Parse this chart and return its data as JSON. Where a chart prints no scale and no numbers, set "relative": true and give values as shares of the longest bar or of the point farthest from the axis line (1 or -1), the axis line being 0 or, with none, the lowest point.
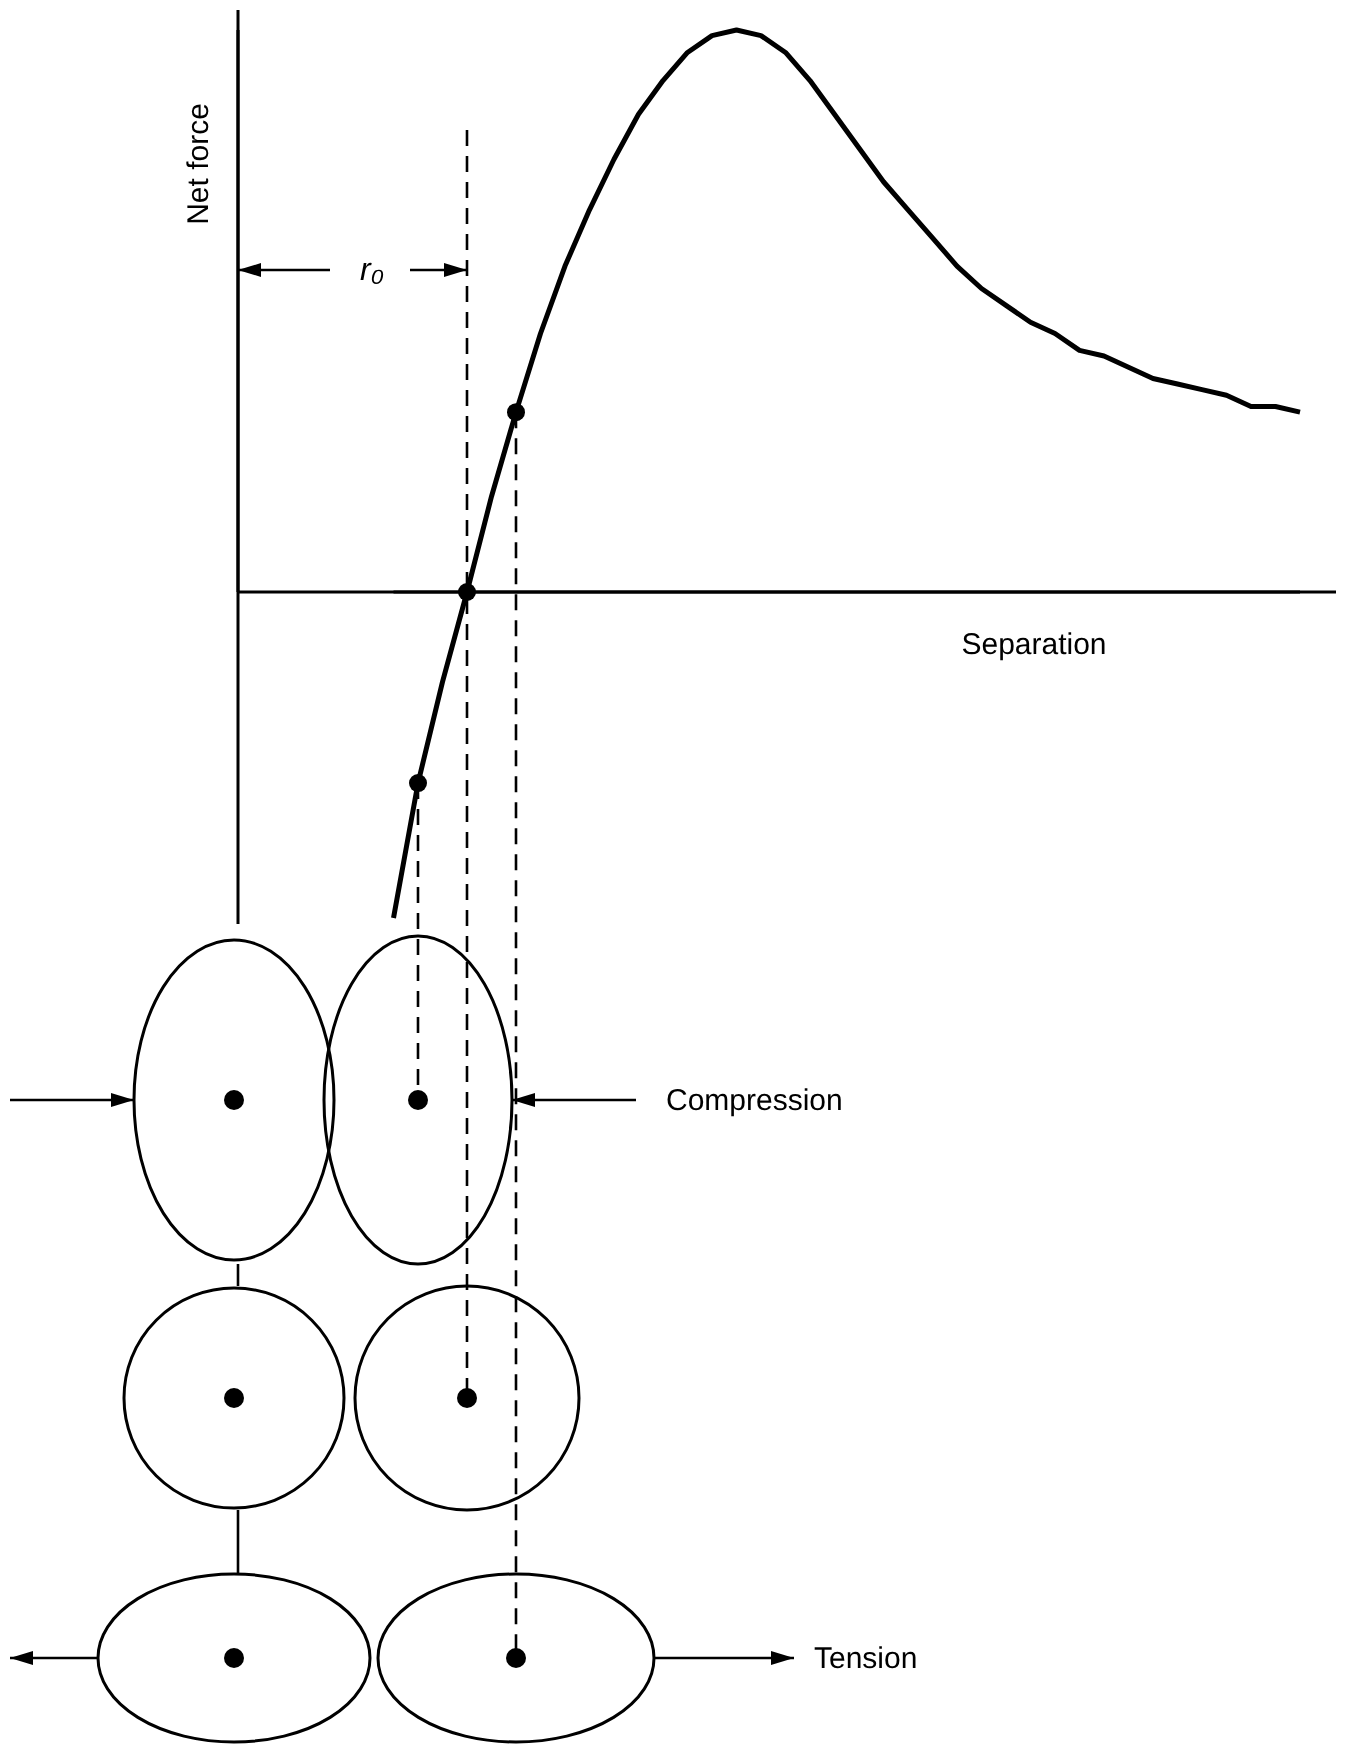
{
  "chart_data": {
    "type": "line",
    "relative": true,
    "xlabel": "Separation",
    "categories": [
      null,
      null,
      null,
      null,
      null,
      null,
      null,
      null,
      null,
      null,
      null,
      null,
      null,
      null,
      null,
      null,
      null,
      null,
      null,
      null,
      null,
      null,
      null,
      null,
      null,
      null,
      null,
      null,
      null,
      null,
      null,
      null,
      null,
      null,
      null,
      null,
      null,
      null
    ],
    "series": [
      {
        "color": "#000000",
        "values": [
          -0.58,
          -0.34,
          -0.16,
          0,
          0.17,
          0.32,
          0.46,
          0.58,
          0.68,
          0.77,
          0.85,
          0.91,
          0.96,
          0.99,
          1,
          0.99,
          0.96,
          0.91,
          0.85,
          0.79,
          0.73,
          0.68,
          0.63,
          0.58,
          0.54,
          0.51,
          0.48,
          0.46,
          0.43,
          0.42,
          0.4,
          0.38,
          0.37,
          0.36,
          0.35,
          0.33,
          0.33,
          0.32
        ]
      }
    ],
    "annotations": [
      "r₀",
      "Compression",
      "Tension",
      "Net force"
    ]
  }
}
